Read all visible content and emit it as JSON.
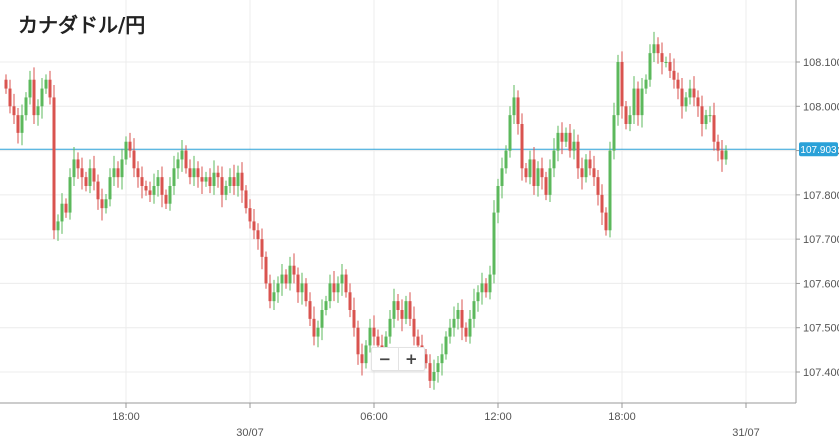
{
  "chart_data": {
    "type": "candlestick",
    "title": "カナダドル/円",
    "ylim": [
      107.33,
      108.24
    ],
    "y_ticks": [
      {
        "value": 107.4,
        "label": "107.400"
      },
      {
        "value": 107.5,
        "label": "107.500"
      },
      {
        "value": 107.6,
        "label": "107.600"
      },
      {
        "value": 107.7,
        "label": "107.700"
      },
      {
        "value": 107.8,
        "label": "107.800"
      },
      {
        "value": 107.9,
        "label": "107.900"
      },
      {
        "value": 108.0,
        "label": "108.000"
      },
      {
        "value": 108.1,
        "label": "108.100"
      }
    ],
    "x_ticks": [
      {
        "index": 30,
        "label": "18:00"
      },
      {
        "index": 61,
        "label": ""
      },
      {
        "index": 92,
        "label": "06:00"
      },
      {
        "index": 123,
        "label": "12:00"
      },
      {
        "index": 154,
        "label": "18:00"
      },
      {
        "index": 185,
        "label": ""
      }
    ],
    "date_labels": [
      {
        "index": 61,
        "label": "30/07"
      },
      {
        "index": 185,
        "label": "31/07"
      }
    ],
    "current_price": {
      "value": 107.903,
      "label": "107.903"
    },
    "grid": true,
    "up_color": "#5cb85c",
    "down_color": "#d9534f",
    "current_line_color": "#2aa1d8",
    "close": [
      108.04,
      108.0,
      107.98,
      107.94,
      107.98,
      108.02,
      108.06,
      107.98,
      108.0,
      108.04,
      108.06,
      108.02,
      107.72,
      107.74,
      107.78,
      107.76,
      107.84,
      107.88,
      107.86,
      107.84,
      107.82,
      107.86,
      107.83,
      107.79,
      107.77,
      107.79,
      107.84,
      107.86,
      107.84,
      107.88,
      107.92,
      107.9,
      107.86,
      107.84,
      107.82,
      107.81,
      107.8,
      107.82,
      107.84,
      107.8,
      107.78,
      107.82,
      107.86,
      107.88,
      107.9,
      107.86,
      107.84,
      107.86,
      107.84,
      107.83,
      107.84,
      107.82,
      107.85,
      107.84,
      107.8,
      107.82,
      107.84,
      107.82,
      107.85,
      107.81,
      107.77,
      107.74,
      107.72,
      107.7,
      107.66,
      107.6,
      107.56,
      107.58,
      107.6,
      107.62,
      107.6,
      107.64,
      107.62,
      107.58,
      107.6,
      107.56,
      107.52,
      107.48,
      107.5,
      107.54,
      107.56,
      107.6,
      107.58,
      107.6,
      107.62,
      107.58,
      107.54,
      107.5,
      107.44,
      107.42,
      107.46,
      107.5,
      107.48,
      107.46,
      107.44,
      107.48,
      107.52,
      107.56,
      107.54,
      107.52,
      107.56,
      107.52,
      107.48,
      107.46,
      107.44,
      107.42,
      107.38,
      107.4,
      107.42,
      107.44,
      107.48,
      107.5,
      107.52,
      107.54,
      107.5,
      107.48,
      107.52,
      107.56,
      107.58,
      107.6,
      107.58,
      107.62,
      107.76,
      107.82,
      107.86,
      107.9,
      107.98,
      108.02,
      107.96,
      107.86,
      107.84,
      107.88,
      107.82,
      107.86,
      107.84,
      107.8,
      107.86,
      107.9,
      107.94,
      107.92,
      107.94,
      107.9,
      107.92,
      107.86,
      107.84,
      107.88,
      107.86,
      107.84,
      107.8,
      107.76,
      107.72,
      107.9,
      107.98,
      108.1,
      108.0,
      107.96,
      107.98,
      108.04,
      107.98,
      108.04,
      108.06,
      108.12,
      108.14,
      108.12,
      108.1,
      108.1,
      108.08,
      108.06,
      108.04,
      108.0,
      108.02,
      108.04,
      108.02,
      108.0,
      107.96,
      107.98,
      107.98,
      107.92,
      107.9,
      107.88,
      107.9
    ]
  }
}
